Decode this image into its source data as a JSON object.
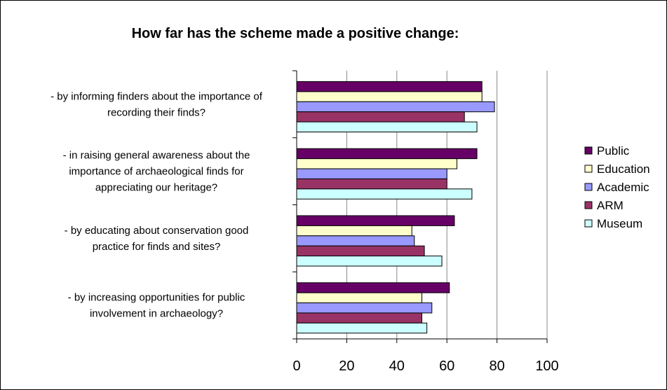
{
  "chart_data": {
    "type": "bar",
    "orientation": "horizontal",
    "title": "How far has the scheme made a positive change:",
    "categories": [
      "- by informing finders about the importance of recording their finds?",
      "- in raising general awareness about the importance of archaeological finds for appreciating our heritage?",
      "- by educating about conservation good practice for finds and sites?",
      "- by increasing opportunities for public involvement in archaeology?"
    ],
    "category_lines": [
      [
        "- by informing finders about the importance of",
        "recording their finds?"
      ],
      [
        "- in raising general awareness about the",
        "importance of archaeological finds for",
        "appreciating our heritage?"
      ],
      [
        "- by educating about conservation good",
        "practice for finds and sites?"
      ],
      [
        "- by increasing opportunities for public",
        "involvement in archaeology?"
      ]
    ],
    "series": [
      {
        "name": "Public",
        "color": "#660066",
        "values": [
          74,
          72,
          63,
          61
        ]
      },
      {
        "name": "Education",
        "color": "#FFFFCC",
        "values": [
          74,
          64,
          46,
          50
        ]
      },
      {
        "name": "Academic",
        "color": "#9999FF",
        "values": [
          79,
          60,
          47,
          54
        ]
      },
      {
        "name": "ARM",
        "color": "#993366",
        "values": [
          67,
          60,
          51,
          50
        ]
      },
      {
        "name": "Museum",
        "color": "#CCFFFF",
        "values": [
          72,
          70,
          58,
          52
        ]
      }
    ],
    "xlim": [
      0,
      100
    ],
    "xticks": [
      0,
      20,
      40,
      60,
      80,
      100
    ],
    "grid": true,
    "legend_position": "right"
  }
}
